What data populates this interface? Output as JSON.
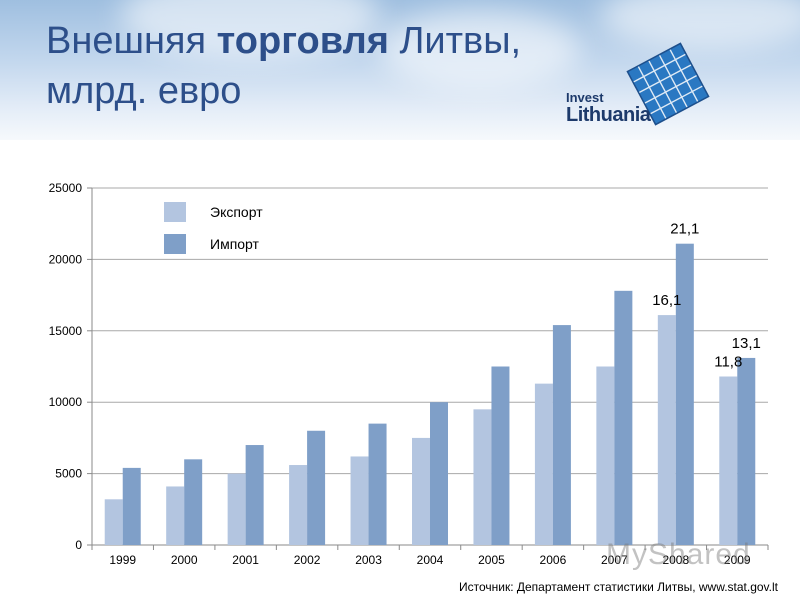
{
  "header": {
    "title_part1": "Внешняя ",
    "title_bold": "торговля",
    "title_part2": " Литвы,",
    "title_line2": "млрд. евро"
  },
  "logo": {
    "line1": "Invest",
    "line2": "Lithuania"
  },
  "source": "Источник: Департамент статистики Литвы, www.stat.gov.lt",
  "watermark": "MyShared",
  "chart_data": {
    "type": "bar",
    "categories": [
      "1999",
      "2000",
      "2001",
      "2002",
      "2003",
      "2004",
      "2005",
      "2006",
      "2007",
      "2008",
      "2009"
    ],
    "series": [
      {
        "name": "Экспорт",
        "color": "#b3c5e0",
        "values": [
          3200,
          4100,
          5000,
          5600,
          6200,
          7500,
          9500,
          11300,
          12500,
          16100,
          11800
        ]
      },
      {
        "name": "Импорт",
        "color": "#7f9fc8",
        "values": [
          5400,
          6000,
          7000,
          8000,
          8500,
          10000,
          12500,
          15400,
          17800,
          21100,
          13100
        ]
      }
    ],
    "ylim": [
      0,
      25000
    ],
    "yticks": [
      0,
      5000,
      10000,
      15000,
      20000,
      25000
    ],
    "grid": true,
    "legend_position": "top-left",
    "annotations": [
      {
        "category": "2008",
        "series": 0,
        "text": "16,1"
      },
      {
        "category": "2008",
        "series": 1,
        "text": "21,1"
      },
      {
        "category": "2009",
        "series": 0,
        "text": "11,8"
      },
      {
        "category": "2009",
        "series": 1,
        "text": "13,1"
      }
    ]
  }
}
